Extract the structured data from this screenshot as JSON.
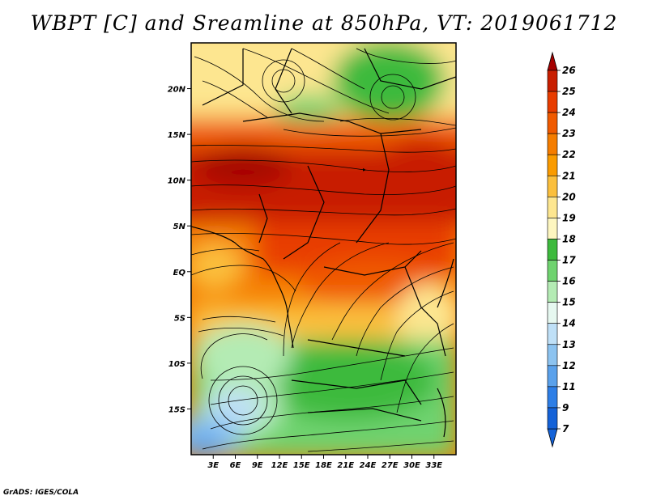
{
  "title": "WBPT [C] and Sreamline at 850hPa, VT: 2019061712",
  "credit": "GrADS: IGES/COLA",
  "map": {
    "lon_range": [
      0,
      36
    ],
    "lat_range": [
      -20,
      25
    ],
    "lon_ticks": [
      "3E",
      "6E",
      "9E",
      "12E",
      "15E",
      "18E",
      "21E",
      "24E",
      "27E",
      "30E",
      "33E"
    ],
    "lat_ticks": [
      "20N",
      "15N",
      "10N",
      "5N",
      "EQ",
      "5S",
      "10S",
      "15S"
    ]
  },
  "colorbar": {
    "levels": [
      "26",
      "25",
      "24",
      "23",
      "22",
      "21",
      "20",
      "19",
      "18",
      "17",
      "16",
      "15",
      "14",
      "13",
      "12",
      "11",
      "9",
      "7"
    ],
    "colors": [
      "#a50000",
      "#c81e00",
      "#e83c00",
      "#f05a00",
      "#f57d00",
      "#fa9b00",
      "#fbbf3c",
      "#fde690",
      "#fdf6c0",
      "#3dba3d",
      "#6fd36f",
      "#b4ebb4",
      "#e6f8f0",
      "#bfe0f7",
      "#8cc3f0",
      "#5aa1eb",
      "#2d7ee6",
      "#1462d8"
    ],
    "top_color": "#a50000",
    "bottom_color": "#1462d8"
  }
}
